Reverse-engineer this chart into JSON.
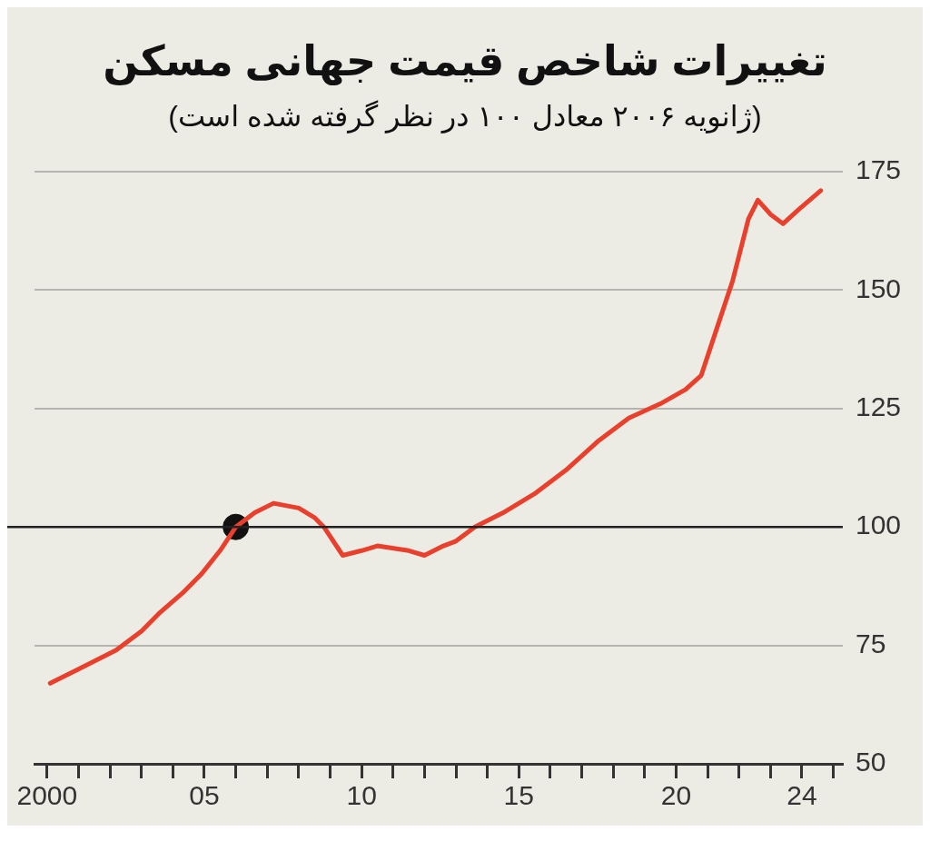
{
  "chart_data": {
    "type": "line",
    "title": "تغییرات شاخص قیمت جهانی مسکن",
    "subtitle": "(ژانویه ۲۰۰۶ معادل ۱۰۰ در نظر گرفته شده است)",
    "series": [
      {
        "color": "#e8402c",
        "x": [
          2000.1,
          2001,
          2002.2,
          2003,
          2003.6,
          2004.3,
          2004.9,
          2005.5,
          2006,
          2006.6,
          2007.2,
          2008,
          2008.5,
          2008.8,
          2009.4,
          2010,
          2010.5,
          2011.5,
          2012,
          2012.6,
          2013,
          2013.6,
          2014.5,
          2015.5,
          2016.5,
          2017.5,
          2018.5,
          2019.5,
          2020.3,
          2020.8,
          2021.3,
          2021.8,
          2022.3,
          2022.6,
          2023,
          2023.4,
          2023.9,
          2024.6
        ],
        "values": [
          67,
          70,
          74,
          78,
          82,
          86,
          90,
          95,
          100,
          103,
          105,
          104,
          102,
          100,
          94,
          95,
          96,
          95,
          94,
          96,
          97,
          100,
          103,
          107,
          112,
          118,
          123,
          126,
          129,
          132,
          142,
          152,
          165,
          169,
          166,
          164,
          167,
          171
        ]
      },
      {
        "type": "scatter",
        "marker": "circle",
        "color": "#111111",
        "x": [
          2006
        ],
        "values": [
          100
        ]
      }
    ],
    "xlim": [
      1999.6,
      2025.3
    ],
    "xticks": [
      2000,
      {
        "value": 2001,
        "label": null
      },
      {
        "value": 2002,
        "label": null
      },
      {
        "value": 2003,
        "label": null
      },
      {
        "value": 2004,
        "label": null
      },
      {
        "value": 2005,
        "label": "05"
      },
      {
        "value": 2006,
        "label": null
      },
      {
        "value": 2007,
        "label": null
      },
      {
        "value": 2008,
        "label": null
      },
      {
        "value": 2009,
        "label": null
      },
      {
        "value": 2010,
        "label": "10"
      },
      {
        "value": 2011,
        "label": null
      },
      {
        "value": 2012,
        "label": null
      },
      {
        "value": 2013,
        "label": null
      },
      {
        "value": 2014,
        "label": null
      },
      {
        "value": 2015,
        "label": "15"
      },
      {
        "value": 2016,
        "label": null
      },
      {
        "value": 2017,
        "label": null
      },
      {
        "value": 2018,
        "label": null
      },
      {
        "value": 2019,
        "label": null
      },
      {
        "value": 2020,
        "label": "20"
      },
      {
        "value": 2021,
        "label": null
      },
      {
        "value": 2022,
        "label": null
      },
      {
        "value": 2023,
        "label": null
      },
      {
        "value": 2024,
        "label": "24"
      },
      {
        "value": 2025,
        "label": null
      }
    ],
    "ylim": [
      50,
      175
    ],
    "yticks": [
      50,
      75,
      100,
      125,
      150,
      175
    ],
    "ref_lines": [
      {
        "axis": "y",
        "value": 100,
        "color": "#222222"
      }
    ],
    "grid": "y",
    "legend": false,
    "line_style": "solid"
  }
}
